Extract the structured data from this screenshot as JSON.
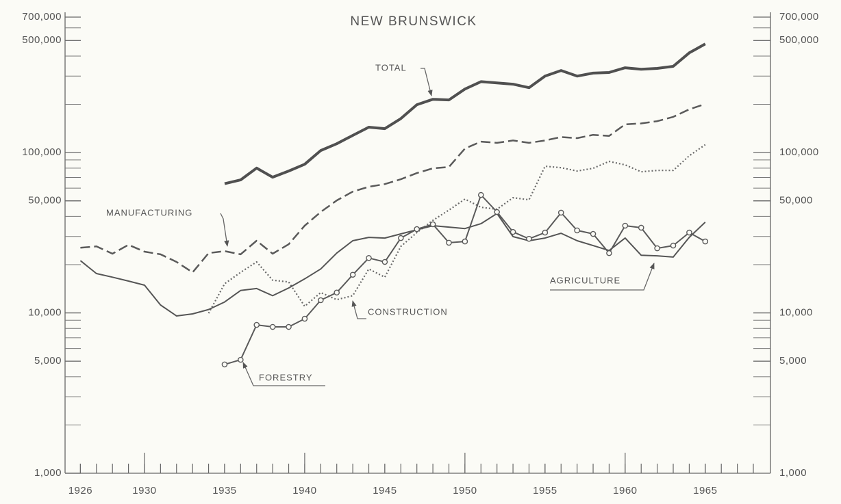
{
  "chart_data": {
    "type": "line",
    "title": "NEW BRUNSWICK",
    "x": [
      1926,
      1927,
      1928,
      1929,
      1930,
      1931,
      1932,
      1933,
      1934,
      1935,
      1936,
      1937,
      1938,
      1939,
      1940,
      1941,
      1942,
      1943,
      1944,
      1945,
      1946,
      1947,
      1948,
      1949,
      1950,
      1951,
      1952,
      1953,
      1954,
      1955,
      1956,
      1957,
      1958,
      1959,
      1960,
      1961,
      1962,
      1963,
      1964,
      1965
    ],
    "xlim": [
      1925,
      1968
    ],
    "xticks": [
      1926,
      1930,
      1935,
      1940,
      1945,
      1950,
      1955,
      1960,
      1965
    ],
    "ylim": [
      1000,
      700000
    ],
    "yticks": [
      {
        "value": 1000,
        "label": "1,000"
      },
      {
        "value": 5000,
        "label": "5,000"
      },
      {
        "value": 10000,
        "label": "10,000"
      },
      {
        "value": 50000,
        "label": "50,000"
      },
      {
        "value": 100000,
        "label": "100,000"
      },
      {
        "value": 500000,
        "label": "500,000"
      },
      {
        "value": 700000,
        "label": "700,000"
      }
    ],
    "log_scale": true,
    "series": [
      {
        "name": "TOTAL",
        "color": "#505050",
        "values": [
          null,
          null,
          null,
          null,
          null,
          null,
          null,
          null,
          null,
          64000,
          67500,
          80000,
          70200,
          76700,
          84600,
          103000,
          113500,
          128000,
          144000,
          141000,
          163000,
          199000,
          215000,
          213000,
          249000,
          277000,
          272000,
          267000,
          254000,
          300000,
          325000,
          300000,
          313000,
          316000,
          338000,
          331000,
          335000,
          345000,
          419000,
          476000
        ]
      },
      {
        "name": "MANUFACTURING",
        "color": "#5a5a5a",
        "values": [
          25500,
          26000,
          23400,
          26600,
          24100,
          23200,
          20800,
          17900,
          23600,
          24300,
          23200,
          28200,
          23400,
          26800,
          35000,
          42600,
          50300,
          57100,
          61200,
          63600,
          68200,
          74500,
          79800,
          81300,
          106000,
          117000,
          115000,
          119000,
          115000,
          119000,
          125000,
          123000,
          129000,
          127000,
          150000,
          152000,
          157000,
          167000,
          186000,
          201000
        ]
      },
      {
        "name": "CONSTRUCTION",
        "color": "#6a6a6a",
        "values": [
          null,
          null,
          null,
          null,
          null,
          null,
          null,
          null,
          9950,
          15200,
          17900,
          20800,
          16000,
          15600,
          11000,
          13400,
          12100,
          12800,
          18800,
          16700,
          26000,
          31700,
          37800,
          43800,
          51300,
          45600,
          44300,
          52300,
          50800,
          82200,
          80500,
          76700,
          79800,
          88100,
          83800,
          75900,
          77400,
          77400,
          95500,
          112000
        ]
      },
      {
        "name": "AGRICULTURE",
        "color": "#555555",
        "values": [
          21200,
          17600,
          16700,
          15800,
          14900,
          11200,
          9570,
          9860,
          10500,
          11700,
          13800,
          14200,
          12800,
          14300,
          16300,
          18800,
          23600,
          28200,
          29600,
          29300,
          31100,
          33000,
          35000,
          34300,
          33600,
          36000,
          41700,
          29900,
          28200,
          29300,
          31400,
          28200,
          26300,
          24500,
          29300,
          22900,
          22700,
          22300,
          29600,
          36800
        ]
      },
      {
        "name": "FORESTRY",
        "color": "#5a5a5a",
        "values": [
          null,
          null,
          null,
          null,
          null,
          null,
          null,
          null,
          null,
          4770,
          5100,
          8420,
          8180,
          8180,
          9200,
          12000,
          13400,
          17300,
          22000,
          20800,
          29300,
          33300,
          35700,
          27400,
          27900,
          54400,
          42600,
          32000,
          29000,
          31700,
          42200,
          32700,
          31100,
          23600,
          35000,
          34000,
          25300,
          26300,
          31700,
          27900
        ]
      }
    ]
  }
}
